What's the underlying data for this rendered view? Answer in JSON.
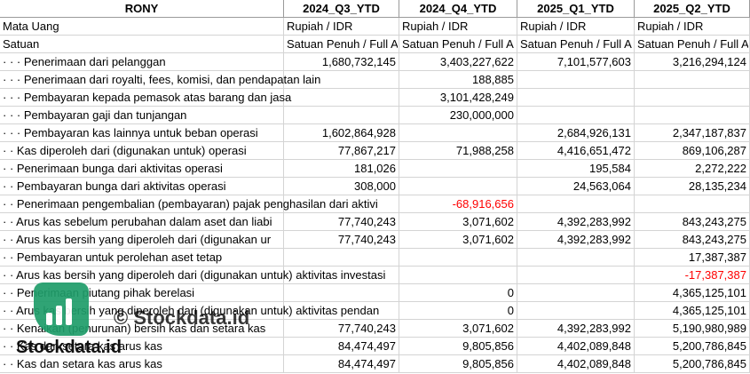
{
  "table": {
    "header": [
      "RONY",
      "2024_Q3_YTD",
      "2024_Q4_YTD",
      "2025_Q1_YTD",
      "2025_Q2_YTD"
    ],
    "rows": [
      [
        "Mata Uang",
        "Rupiah / IDR",
        "Rupiah / IDR",
        "Rupiah / IDR",
        "Rupiah / IDR"
      ],
      [
        "Satuan",
        "Satuan Penuh / Full A",
        "Satuan Penuh / Full A",
        "Satuan Penuh / Full A",
        "Satuan Penuh / Full A"
      ],
      [
        "· · · Penerimaan dari pelanggan",
        "1,680,732,145",
        "3,403,227,622",
        "7,101,577,603",
        "3,216,294,124"
      ],
      [
        "· · · Penerimaan dari royalti, fees, komisi, dan pendapatan lain",
        null,
        "188,885",
        null,
        null
      ],
      [
        "· · · Pembayaran kepada pemasok atas barang dan jasa",
        null,
        "3,101,428,249",
        null,
        null
      ],
      [
        "· · · Pembayaran gaji dan tunjangan",
        null,
        "230,000,000",
        null,
        null
      ],
      [
        "· · · Pembayaran kas lainnya untuk beban operasi",
        "1,602,864,928",
        null,
        "2,684,926,131",
        "2,347,187,837"
      ],
      [
        "· · Kas diperoleh dari (digunakan untuk) operasi",
        "77,867,217",
        "71,988,258",
        "4,416,651,472",
        "869,106,287"
      ],
      [
        "· · Penerimaan bunga dari aktivitas operasi",
        "181,026",
        null,
        "195,584",
        "2,272,222"
      ],
      [
        "· · Pembayaran bunga dari aktivitas operasi",
        "308,000",
        null,
        "24,563,064",
        "28,135,234"
      ],
      [
        "· · Penerimaan pengembalian (pembayaran) pajak penghasilan dari aktivi",
        null,
        "-68,916,656",
        null,
        null
      ],
      [
        "· · Arus kas sebelum perubahan dalam aset dan liabi",
        "77,740,243",
        "3,071,602",
        "4,392,283,992",
        "843,243,275"
      ],
      [
        "· · Arus kas bersih yang diperoleh dari (digunakan ur",
        "77,740,243",
        "3,071,602",
        "4,392,283,992",
        "843,243,275"
      ],
      [
        "· · Pembayaran untuk perolehan aset tetap",
        null,
        null,
        null,
        "17,387,387"
      ],
      [
        "· · Arus kas bersih yang diperoleh dari (digunakan untuk) aktivitas investasi",
        null,
        null,
        null,
        "-17,387,387"
      ],
      [
        "· · Penerimaan piutang pihak berelasi",
        null,
        "0",
        null,
        "4,365,125,101"
      ],
      [
        "· · Arus kas bersih yang diperoleh dari (digunakan untuk) aktivitas pendan",
        null,
        "0",
        null,
        "4,365,125,101"
      ],
      [
        "· · Kenaikan (penurunan) bersih kas dan setara kas",
        "77,740,243",
        "3,071,602",
        "4,392,283,992",
        "5,190,980,989"
      ],
      [
        "· · Kas dan setara kas arus kas",
        "84,474,497",
        "9,805,856",
        "4,402,089,848",
        "5,200,786,845"
      ],
      [
        "· · Kas dan setara kas arus kas",
        "84,474,497",
        "9,805,856",
        "4,402,089,848",
        "5,200,786,845"
      ]
    ]
  },
  "watermark": {
    "overlay": "© Stockdata.id",
    "logo": "Stockdata.id"
  }
}
